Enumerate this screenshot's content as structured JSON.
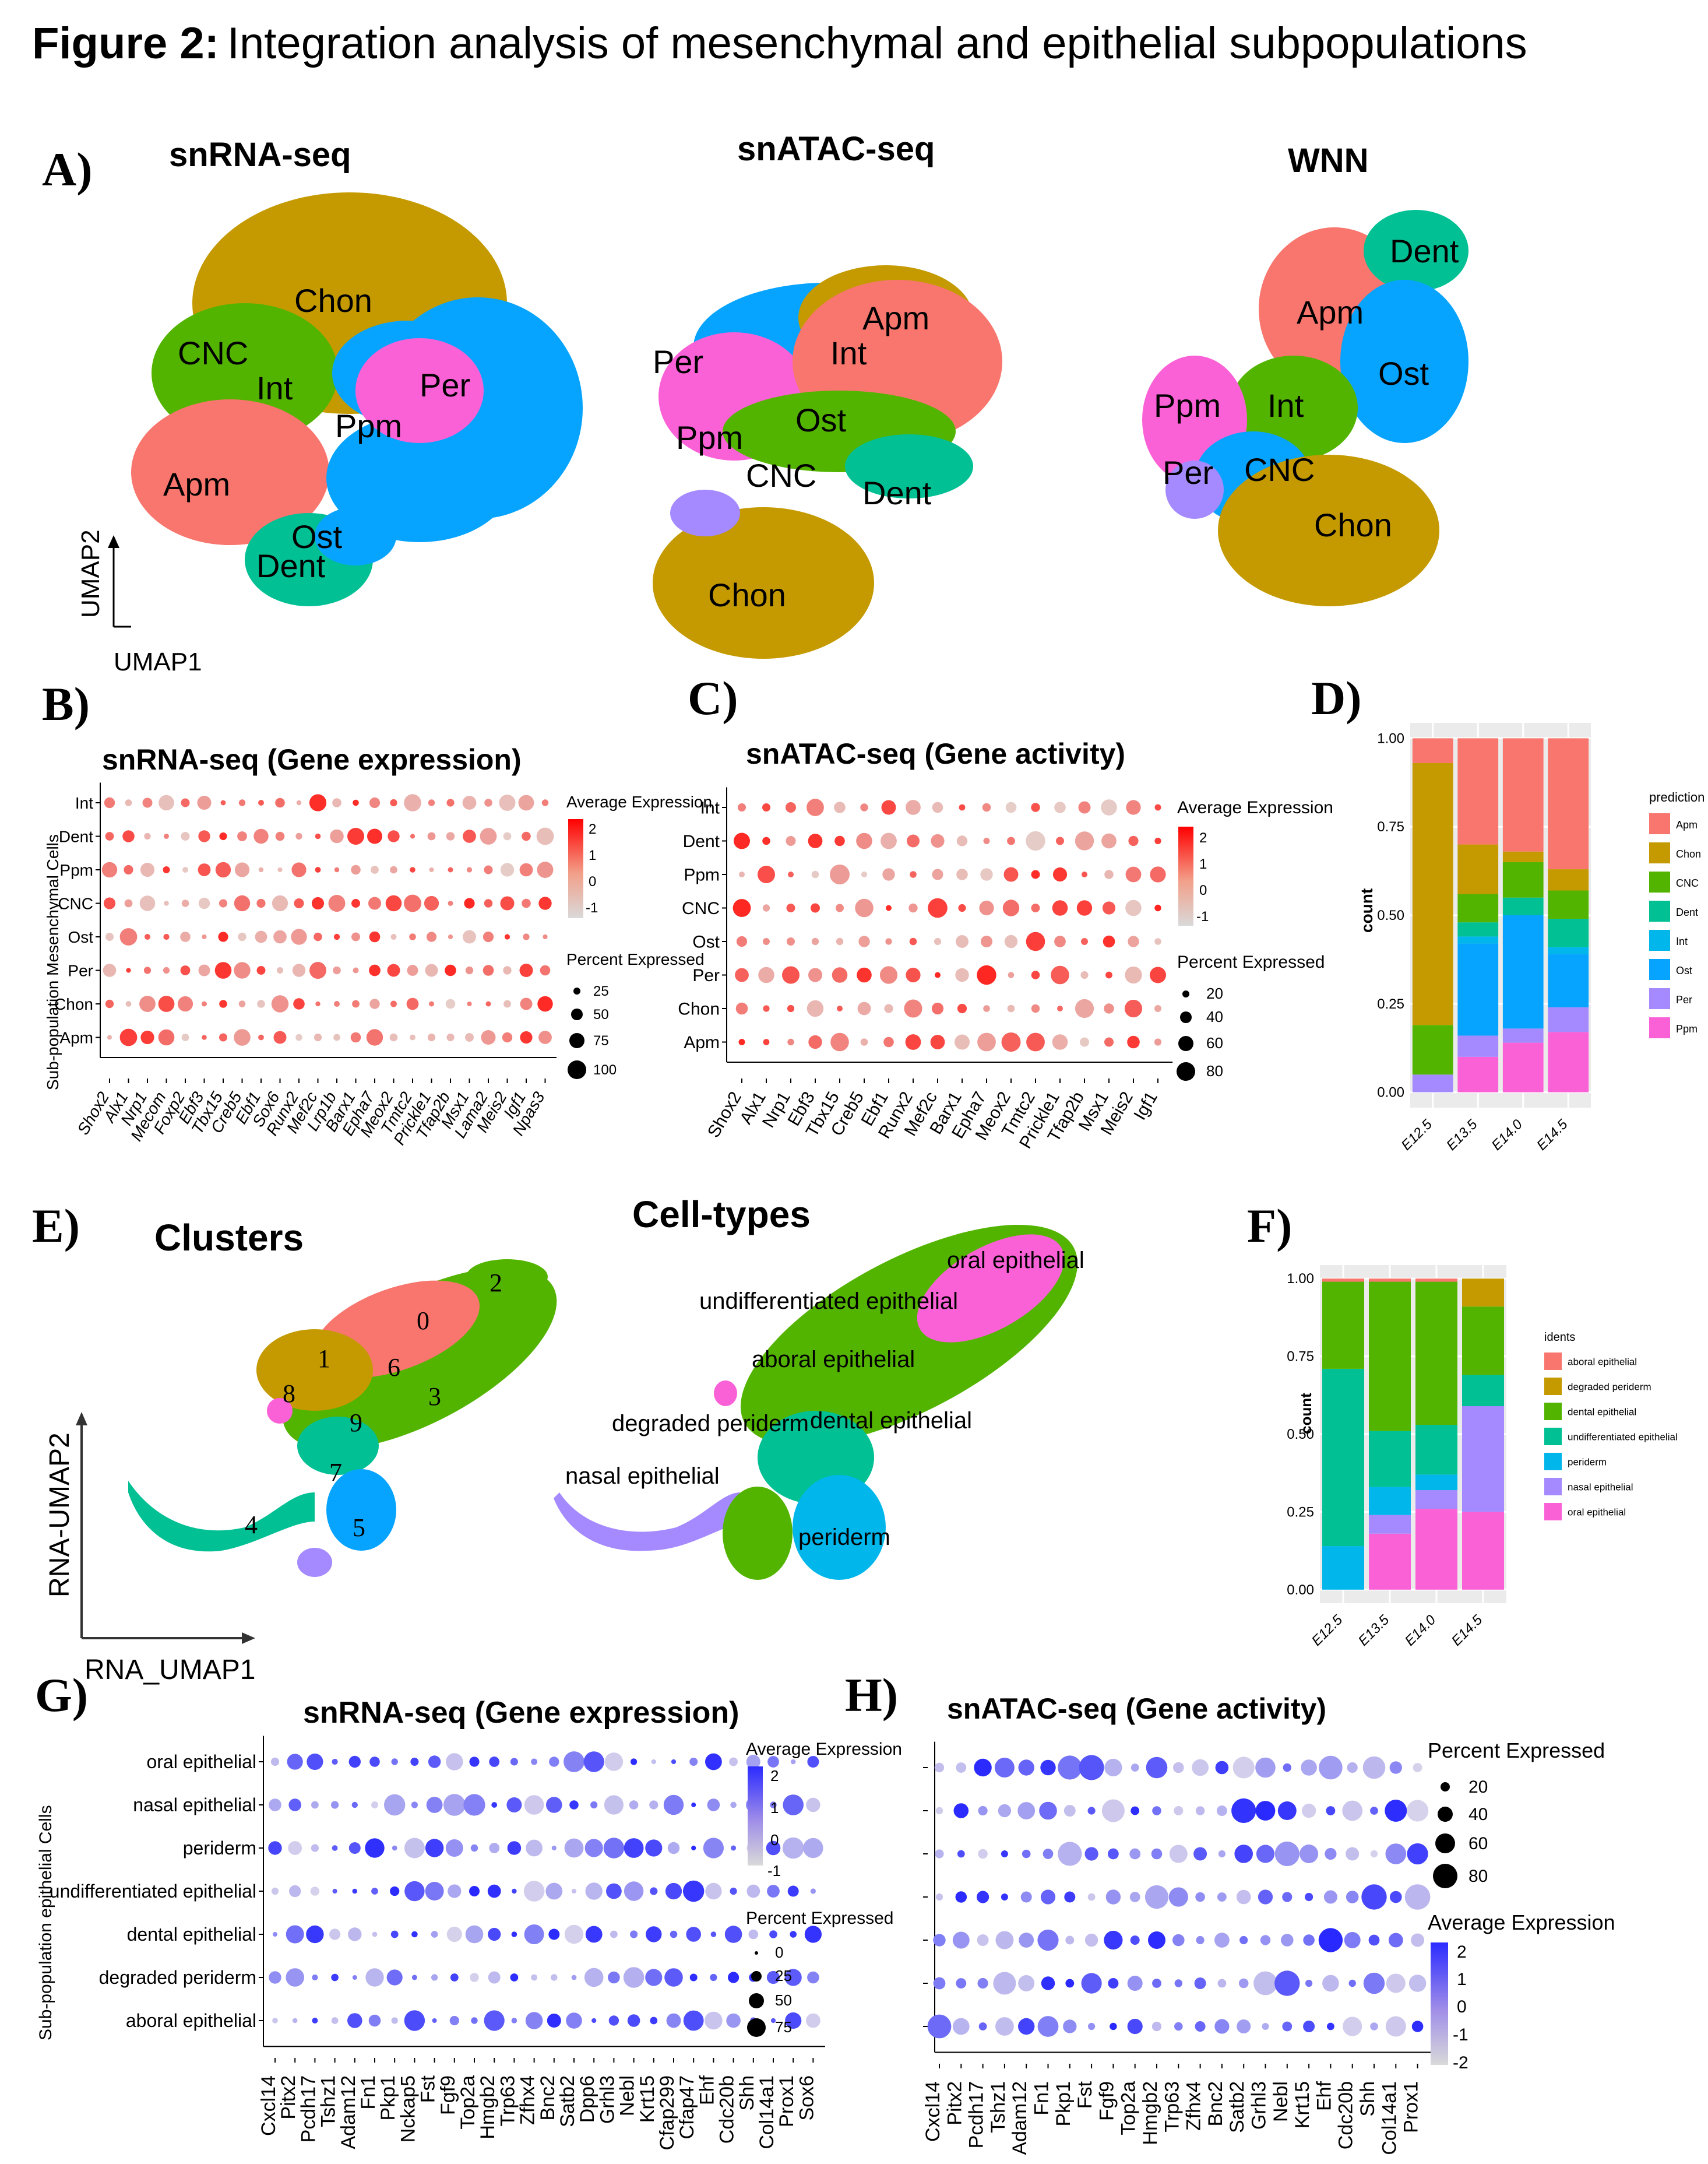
{
  "figure": {
    "label": "Figure 2:",
    "title": "Integration analysis of mesenchymal and epithelial subpopulations"
  },
  "panel_labels": {
    "a": "A)",
    "b": "B)",
    "c": "C)",
    "d": "D)",
    "e": "E)",
    "f": "F)",
    "g": "G)",
    "h": "H)"
  },
  "panel_a": {
    "titles": [
      "snRNA-seq",
      "snATAC-seq",
      "WNN"
    ],
    "axis_x": "UMAP1",
    "axis_y": "UMAP2",
    "labels_rna": [
      "Chon",
      "CNC",
      "Int",
      "Per",
      "Ppm",
      "Apm",
      "Ost",
      "Dent"
    ],
    "labels_atac": [
      "Apm",
      "Per",
      "Int",
      "Ppm",
      "Ost",
      "CNC",
      "Dent",
      "Chon"
    ],
    "labels_wnn": [
      "Dent",
      "Apm",
      "Ost",
      "Ppm",
      "Int",
      "Per",
      "CNC",
      "Chon"
    ],
    "colors": {
      "Apm": "#F8766D",
      "Chon": "#C49A00",
      "CNC": "#53B400",
      "Dent": "#00C094",
      "Int": "#00B6EB",
      "Ost": "#06A4FF",
      "Per": "#A58AFF",
      "Ppm": "#FB61D7"
    }
  },
  "panel_b": {
    "title": "snRNA-seq (Gene expression)",
    "ylab": "Sub-population Mesenchymal Cells",
    "rows": [
      "Int",
      "Dent",
      "Ppm",
      "CNC",
      "Ost",
      "Per",
      "Chon",
      "Apm"
    ],
    "genes": [
      "Shox2",
      "Alx1",
      "Nrp1",
      "Mecom",
      "Foxp2",
      "Ebf3",
      "Tbx15",
      "Creb5",
      "Ebf1",
      "Sox6",
      "Runx2",
      "Mef2c",
      "Lrp1b",
      "Barx1",
      "Epha7",
      "Meox2",
      "Tmtc2",
      "Prickle1",
      "Tfap2b",
      "Msx1",
      "Lama2",
      "Meis2",
      "Igf1",
      "Npas3"
    ],
    "legend_expr_title": "Average Expression",
    "legend_expr_ticks": [
      "2",
      "1",
      "0",
      "-1"
    ],
    "legend_pct_title": "Percent Expressed",
    "legend_pct_ticks": [
      "25",
      "50",
      "75",
      "100"
    ]
  },
  "panel_c": {
    "title": "snATAC-seq (Gene activity)",
    "rows": [
      "Int",
      "Dent",
      "Ppm",
      "CNC",
      "Ost",
      "Per",
      "Chon",
      "Apm"
    ],
    "genes": [
      "Shox2",
      "Alx1",
      "Nrp1",
      "Ebf3",
      "Tbx15",
      "Creb5",
      "Ebf1",
      "Runx2",
      "Mef2c",
      "Barx1",
      "Epha7",
      "Meox2",
      "Tmtc2",
      "Prickle1",
      "Tfap2b",
      "Msx1",
      "Meis2",
      "Igf1"
    ],
    "legend_expr_title": "Average Expression",
    "legend_expr_ticks": [
      "2",
      "1",
      "0",
      "-1"
    ],
    "legend_pct_title": "Percent Expressed",
    "legend_pct_ticks": [
      "20",
      "40",
      "60",
      "80"
    ]
  },
  "panel_e": {
    "title_left": "Clusters",
    "title_right": "Cell-types",
    "axis_x": "RNA_UMAP1",
    "axis_y": "RNA-UMAP2",
    "cluster_numbers": [
      "0",
      "1",
      "2",
      "3",
      "4",
      "5",
      "6",
      "7",
      "8",
      "9"
    ],
    "celltype_labels": [
      "oral epithelial",
      "undifferentiated epithelial",
      "aboral epithelial",
      "degraded periderm",
      "dental epithelial",
      "nasal epithelial",
      "periderm"
    ]
  },
  "panel_g": {
    "title": "snRNA-seq (Gene expression)",
    "ylab": "Sub-population epithelial Cells",
    "rows": [
      "oral epithelial",
      "nasal epithelial",
      "periderm",
      "undifferentiated epithelial",
      "dental epithelial",
      "degraded periderm",
      "aboral epithelial"
    ],
    "genes": [
      "Cxcl14",
      "Pitx2",
      "Pcdh17",
      "Tshz1",
      "Adam12",
      "Fn1",
      "Pkp1",
      "Nckap5",
      "Fst",
      "Fgf9",
      "Top2a",
      "Hmgb2",
      "Trp63",
      "Zfhx4",
      "Bnc2",
      "Satb2",
      "Dpp6",
      "Grhl3",
      "Nebl",
      "Krt15",
      "Cfap299",
      "Cfap47",
      "Ehf",
      "Cdc20b",
      "Shh",
      "Col14a1",
      "Prox1",
      "Sox6"
    ],
    "legend_expr_title": "Average Expression",
    "legend_expr_ticks": [
      "2",
      "1",
      "0",
      "-1"
    ],
    "legend_pct_title": "Percent Expressed",
    "legend_pct_ticks": [
      "0",
      "25",
      "50",
      "75"
    ]
  },
  "panel_h": {
    "title": "snATAC-seq (Gene activity)",
    "genes": [
      "Cxcl14",
      "Pitx2",
      "Pcdh17",
      "Tshz1",
      "Adam12",
      "Fn1",
      "Pkp1",
      "Fst",
      "Fgf9",
      "Top2a",
      "Hmgb2",
      "Trp63",
      "Zfhx4",
      "Bnc2",
      "Satb2",
      "Grhl3",
      "Nebl",
      "Krt15",
      "Ehf",
      "Cdc20b",
      "Shh",
      "Col14a1",
      "Prox1"
    ],
    "legend_pct_title": "Percent Expressed",
    "legend_pct_ticks": [
      "20",
      "40",
      "60",
      "80"
    ],
    "legend_expr_title": "Average Expression",
    "legend_expr_ticks": [
      "2",
      "1",
      "0",
      "-1",
      "-2"
    ]
  },
  "chart_data": [
    {
      "type": "bar",
      "stacked": true,
      "panel": "D",
      "ylabel": "count",
      "ylim": [
        0,
        1
      ],
      "yticks": [
        "0.00",
        "0.25",
        "0.50",
        "0.75",
        "1.00"
      ],
      "categories": [
        "E12.5",
        "E13.5",
        "E14.0",
        "E14.5"
      ],
      "legend_title": "prediction",
      "series": [
        {
          "name": "Apm",
          "color": "#F8766D",
          "values": [
            0.07,
            0.3,
            0.32,
            0.37
          ]
        },
        {
          "name": "Chon",
          "color": "#C49A00",
          "values": [
            0.74,
            0.14,
            0.03,
            0.06
          ]
        },
        {
          "name": "CNC",
          "color": "#53B400",
          "values": [
            0.14,
            0.08,
            0.1,
            0.08
          ]
        },
        {
          "name": "Dent",
          "color": "#00C094",
          "values": [
            0.0,
            0.04,
            0.05,
            0.08
          ]
        },
        {
          "name": "Int",
          "color": "#00B6EB",
          "values": [
            0.0,
            0.02,
            0.0,
            0.02
          ]
        },
        {
          "name": "Ost",
          "color": "#06A4FF",
          "values": [
            0.0,
            0.26,
            0.32,
            0.15
          ]
        },
        {
          "name": "Per",
          "color": "#A58AFF",
          "values": [
            0.05,
            0.06,
            0.04,
            0.07
          ]
        },
        {
          "name": "Ppm",
          "color": "#FB61D7",
          "values": [
            0.0,
            0.1,
            0.14,
            0.17
          ]
        }
      ]
    },
    {
      "type": "bar",
      "stacked": true,
      "panel": "F",
      "ylabel": "count",
      "ylim": [
        0,
        1
      ],
      "yticks": [
        "0.00",
        "0.25",
        "0.50",
        "0.75",
        "1.00"
      ],
      "categories": [
        "E12.5",
        "E13.5",
        "E14.0",
        "E14.5"
      ],
      "legend_title": "idents",
      "series": [
        {
          "name": "aboral epithelial",
          "color": "#F8766D",
          "values": [
            0.01,
            0.01,
            0.01,
            0.0
          ]
        },
        {
          "name": "degraded periderm",
          "color": "#C49A00",
          "values": [
            0.0,
            0.0,
            0.0,
            0.09
          ]
        },
        {
          "name": "dental epithelial",
          "color": "#53B400",
          "values": [
            0.28,
            0.48,
            0.46,
            0.22
          ]
        },
        {
          "name": "undifferentiated epithelial",
          "color": "#00C094",
          "values": [
            0.57,
            0.18,
            0.16,
            0.1
          ]
        },
        {
          "name": "periderm",
          "color": "#00B6EB",
          "values": [
            0.14,
            0.09,
            0.05,
            0.0
          ]
        },
        {
          "name": "nasal epithelial",
          "color": "#A58AFF",
          "values": [
            0.0,
            0.06,
            0.06,
            0.34
          ]
        },
        {
          "name": "oral epithelial",
          "color": "#FB61D7",
          "values": [
            0.0,
            0.18,
            0.26,
            0.25
          ]
        }
      ]
    }
  ]
}
